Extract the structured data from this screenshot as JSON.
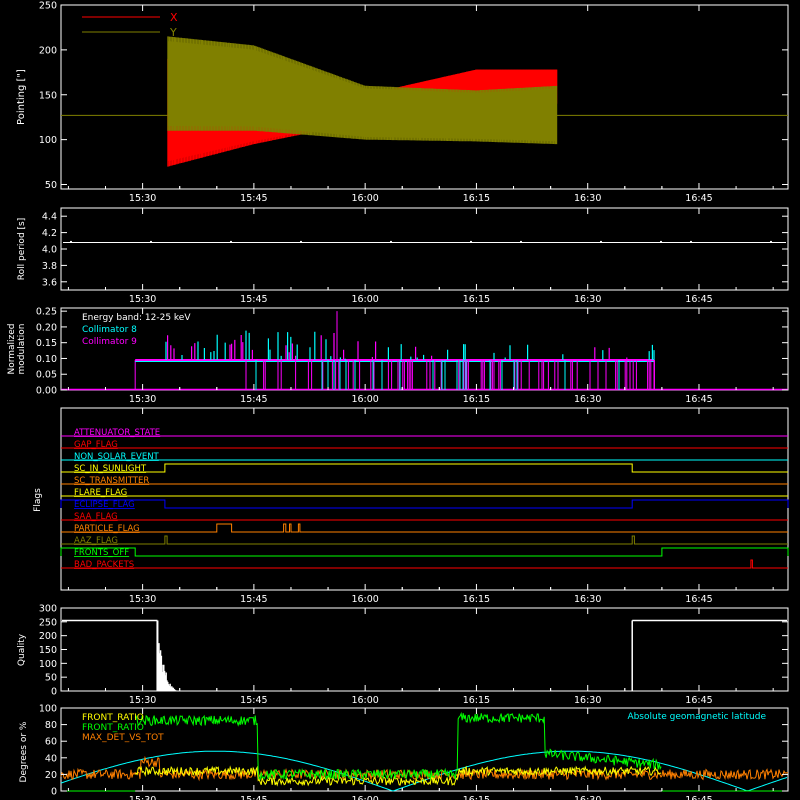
{
  "colors": {
    "background": "#000000",
    "foreground": "#ffffff",
    "red": "#ff0000",
    "olive": "#808000",
    "cyan": "#00ffff",
    "magenta": "#ff00ff",
    "green": "#00ff00",
    "orange": "#ff8000",
    "yellow": "#ffff00",
    "blue": "#0000ff",
    "pink": "#ff69b4",
    "lightcyan": "#00ffff"
  },
  "time_ticks": [
    "15:30",
    "15:45",
    "16:00",
    "16:15",
    "16:30",
    "16:45"
  ],
  "chart_data": [
    {
      "type": "line",
      "panel": "pointing",
      "ylabel": "Pointing [\"]",
      "xlim": [
        "15:19",
        "16:57"
      ],
      "ylim": [
        45,
        250
      ],
      "yticks": [
        50,
        100,
        150,
        200,
        250
      ],
      "legend": [
        "X",
        "Y"
      ],
      "legend_placement": "top-left",
      "series": [
        {
          "name": "X",
          "color": "#ff0000",
          "upper": [
            [
              15.557,
              190
            ],
            [
              15.75,
              160
            ],
            [
              16.0,
              150
            ],
            [
              16.25,
              178
            ],
            [
              16.43,
              178
            ]
          ],
          "lower": [
            [
              15.557,
              70
            ],
            [
              15.75,
              95
            ],
            [
              16.0,
              120
            ],
            [
              16.25,
              135
            ],
            [
              16.43,
              140
            ]
          ]
        },
        {
          "name": "Y",
          "color": "#808000",
          "upper": [
            [
              15.557,
              215
            ],
            [
              15.75,
              205
            ],
            [
              16.0,
              160
            ],
            [
              16.25,
              155
            ],
            [
              16.43,
              160
            ]
          ],
          "lower": [
            [
              15.557,
              110
            ],
            [
              15.75,
              110
            ],
            [
              16.0,
              100
            ],
            [
              16.25,
              98
            ],
            [
              16.43,
              95
            ]
          ]
        }
      ],
      "baseline": 127
    },
    {
      "type": "line",
      "panel": "roll_period",
      "ylabel": "Roll period [s]",
      "ylim": [
        3.5,
        4.5
      ],
      "yticks": [
        "3.6",
        "3.8",
        "4.0",
        "4.2",
        "4.4"
      ],
      "value": 4.08
    },
    {
      "type": "bar",
      "panel": "modulation",
      "ylabel_lines": [
        "Normalized",
        "modulation"
      ],
      "ylim": [
        0,
        0.26
      ],
      "yticks": [
        "0.00",
        "0.05",
        "0.10",
        "0.15",
        "0.20",
        "0.25"
      ],
      "annotation": "Energy band: 12-25 keV",
      "series": [
        {
          "name": "Collimator 8",
          "color": "#00ffff"
        },
        {
          "name": "Collimator 9",
          "color": "#ff00ff"
        }
      ],
      "active_range": [
        "15:29",
        "16:39"
      ],
      "base_value": 0.095
    },
    {
      "type": "table",
      "panel": "flags",
      "ylabel": "Flags",
      "flags": [
        {
          "name": "ATTENUATOR_STATE",
          "color": "#ff00ff",
          "high": []
        },
        {
          "name": "GAP_FLAG",
          "color": "#ff0000",
          "high": []
        },
        {
          "name": "NON_SOLAR_EVENT",
          "color": "#00ffff",
          "high": []
        },
        {
          "name": "SC_IN_SUNLIGHT",
          "color": "#ffff00",
          "high": [
            [
              "15:33",
              "16:36"
            ]
          ]
        },
        {
          "name": "SC_TRANSMITTER",
          "color": "#ff8000",
          "high": []
        },
        {
          "name": "FLARE_FLAG",
          "color": "#ffff00",
          "high": []
        },
        {
          "name": "ECLIPSE_FLAG",
          "color": "#0000ff",
          "high": [
            [
              "15:19",
              "15:33"
            ],
            [
              "16:36",
              "16:57"
            ]
          ]
        },
        {
          "name": "SAA_FLAG",
          "color": "#ff0000",
          "high": []
        },
        {
          "name": "PARTICLE_FLAG",
          "color": "#ff8000",
          "high": [
            [
              "15:40",
              "15:42"
            ],
            [
              "15:49",
              "15:49.3"
            ],
            [
              "15:49.8",
              "15:50"
            ],
            [
              "15:51",
              "15:51.2"
            ]
          ]
        },
        {
          "name": "AAZ_FLAG",
          "color": "#808000",
          "high": [
            [
              "15:33",
              "15:33.3"
            ],
            [
              "16:36",
              "16:36.3"
            ]
          ]
        },
        {
          "name": "FRONTS_OFF",
          "color": "#00ff00",
          "high": [
            [
              "15:19",
              "15:29"
            ],
            [
              "16:40",
              "16:57"
            ]
          ]
        },
        {
          "name": "BAD_PACKETS",
          "color": "#ff0000",
          "high": [
            [
              "16:52",
              "16:52.2"
            ]
          ]
        }
      ]
    },
    {
      "type": "line",
      "panel": "quality",
      "ylabel": "Quality",
      "ylim": [
        0,
        300
      ],
      "yticks": [
        "0",
        "50",
        "100",
        "150",
        "200",
        "250",
        "300"
      ],
      "segments": [
        {
          "x": [
            "15:19",
            "15:32"
          ],
          "y": 255
        },
        {
          "x": [
            "16:36",
            "16:57"
          ],
          "y": 255
        }
      ],
      "decay_after": "15:32"
    },
    {
      "type": "line",
      "panel": "ratios",
      "ylabel": "Degrees or %",
      "ylim": [
        0,
        100
      ],
      "yticks": [
        "0",
        "20",
        "40",
        "60",
        "80",
        "100"
      ],
      "legend": [
        "FRONT_RATIO",
        "FRONT_RATIO",
        "MAX_DET_VS_TOT"
      ],
      "annotation": "Absolute geomagnetic latitude",
      "series": [
        {
          "name": "FRONT_RATIO",
          "color": "#ffff00"
        },
        {
          "name": "FRONT_RATIO",
          "color": "#00ff00"
        },
        {
          "name": "MAX_DET_VS_TOT",
          "color": "#ff8000"
        },
        {
          "name": "Absolute geomagnetic latitude",
          "color": "#00ffff"
        }
      ]
    }
  ]
}
